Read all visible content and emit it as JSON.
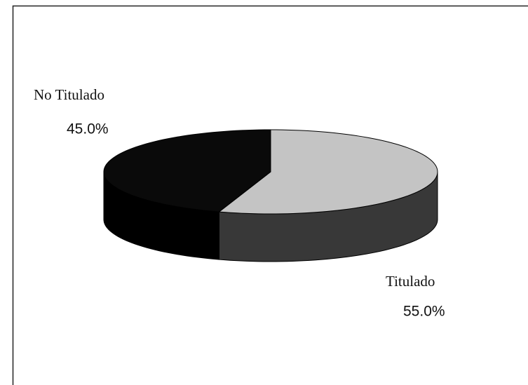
{
  "chart_data": {
    "type": "pie",
    "categories": [
      "Titulado",
      "No Titulado"
    ],
    "values": [
      55.0,
      45.0
    ],
    "value_labels": [
      "55.0%",
      "45.0%"
    ],
    "colors": [
      "#c4c4c4",
      "#0a0a0a"
    ],
    "side_colors": [
      "#383838",
      "#000000"
    ]
  }
}
